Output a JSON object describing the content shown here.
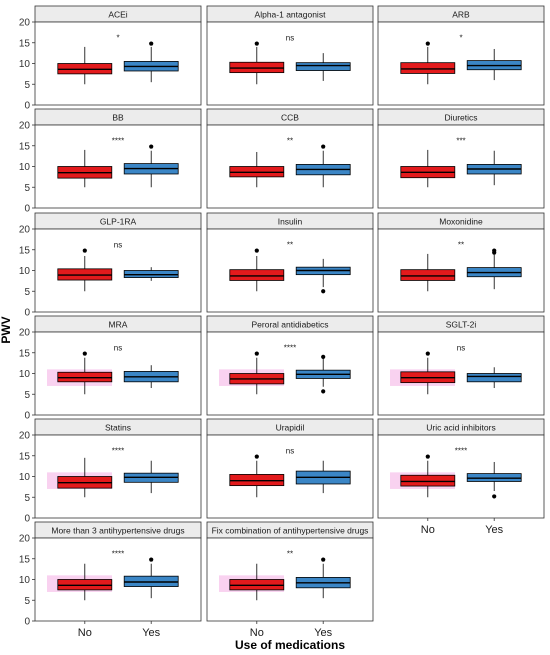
{
  "chart_data": {
    "type": "box",
    "xlabel": "Use of medications",
    "ylabel": "PWV",
    "categories": [
      "No",
      "Yes"
    ],
    "ylim": [
      0,
      20
    ],
    "yticks": [
      0,
      5,
      10,
      15,
      20
    ],
    "colors": {
      "No": "#e31a1c",
      "Yes": "#3b86c6",
      "highlight": "#f9d2f0",
      "strip": "#ececec",
      "border": "#333333"
    },
    "grid": false,
    "facets": [
      {
        "title": "ACEi",
        "significance": "*",
        "highlight": false,
        "No": {
          "min": 5.0,
          "q1": 7.5,
          "median": 8.6,
          "q3": 10.0,
          "max": 14.0,
          "outliers": []
        },
        "Yes": {
          "min": 5.5,
          "q1": 8.2,
          "median": 9.3,
          "q3": 10.5,
          "max": 14.0,
          "outliers": [
            14.8
          ]
        }
      },
      {
        "title": "Alpha-1 antagonist",
        "significance": "ns",
        "highlight": false,
        "No": {
          "min": 5.0,
          "q1": 7.8,
          "median": 8.9,
          "q3": 10.3,
          "max": 14.0,
          "outliers": [
            14.8
          ]
        },
        "Yes": {
          "min": 5.8,
          "q1": 8.3,
          "median": 9.5,
          "q3": 10.2,
          "max": 12.5,
          "outliers": []
        }
      },
      {
        "title": "ARB",
        "significance": "*",
        "highlight": false,
        "No": {
          "min": 5.0,
          "q1": 7.6,
          "median": 8.7,
          "q3": 10.2,
          "max": 14.0,
          "outliers": [
            14.8
          ]
        },
        "Yes": {
          "min": 6.0,
          "q1": 8.5,
          "median": 9.5,
          "q3": 10.7,
          "max": 13.5,
          "outliers": []
        }
      },
      {
        "title": "BB",
        "significance": "****",
        "highlight": false,
        "No": {
          "min": 5.0,
          "q1": 7.2,
          "median": 8.5,
          "q3": 10.0,
          "max": 14.0,
          "outliers": []
        },
        "Yes": {
          "min": 5.0,
          "q1": 8.2,
          "median": 9.5,
          "q3": 10.7,
          "max": 13.8,
          "outliers": [
            14.8
          ]
        }
      },
      {
        "title": "CCB",
        "significance": "**",
        "highlight": false,
        "No": {
          "min": 5.0,
          "q1": 7.5,
          "median": 8.6,
          "q3": 10.0,
          "max": 13.5,
          "outliers": []
        },
        "Yes": {
          "min": 5.0,
          "q1": 8.0,
          "median": 9.3,
          "q3": 10.5,
          "max": 13.8,
          "outliers": [
            14.8
          ]
        }
      },
      {
        "title": "Diuretics",
        "significance": "***",
        "highlight": false,
        "No": {
          "min": 5.0,
          "q1": 7.3,
          "median": 8.6,
          "q3": 10.0,
          "max": 14.0,
          "outliers": []
        },
        "Yes": {
          "min": 5.5,
          "q1": 8.2,
          "median": 9.4,
          "q3": 10.5,
          "max": 13.8,
          "outliers": []
        }
      },
      {
        "title": "GLP-1RA",
        "significance": "ns",
        "highlight": false,
        "No": {
          "min": 5.0,
          "q1": 7.7,
          "median": 8.9,
          "q3": 10.4,
          "max": 13.5,
          "outliers": [
            14.8
          ]
        },
        "Yes": {
          "min": 7.5,
          "q1": 8.3,
          "median": 9.0,
          "q3": 10.0,
          "max": 10.8,
          "outliers": []
        }
      },
      {
        "title": "Insulin",
        "significance": "**",
        "highlight": false,
        "No": {
          "min": 5.0,
          "q1": 7.6,
          "median": 8.7,
          "q3": 10.2,
          "max": 13.5,
          "outliers": [
            14.8
          ]
        },
        "Yes": {
          "min": 6.0,
          "q1": 9.0,
          "median": 10.0,
          "q3": 10.8,
          "max": 12.8,
          "outliers": [
            5.0
          ]
        }
      },
      {
        "title": "Moxonidine",
        "significance": "**",
        "highlight": false,
        "No": {
          "min": 5.0,
          "q1": 7.6,
          "median": 8.7,
          "q3": 10.2,
          "max": 14.0,
          "outliers": []
        },
        "Yes": {
          "min": 5.5,
          "q1": 8.5,
          "median": 9.5,
          "q3": 10.7,
          "max": 13.8,
          "outliers": [
            14.3,
            14.8
          ]
        }
      },
      {
        "title": "MRA",
        "significance": "ns",
        "highlight": true,
        "No": {
          "min": 5.0,
          "q1": 8.0,
          "median": 9.0,
          "q3": 10.3,
          "max": 13.8,
          "outliers": [
            14.8
          ]
        },
        "Yes": {
          "min": 6.5,
          "q1": 8.0,
          "median": 9.2,
          "q3": 10.5,
          "max": 12.0,
          "outliers": []
        }
      },
      {
        "title": "Peroral antidiabetics",
        "significance": "****",
        "highlight": true,
        "No": {
          "min": 5.0,
          "q1": 7.5,
          "median": 8.7,
          "q3": 10.0,
          "max": 13.8,
          "outliers": [
            14.8
          ]
        },
        "Yes": {
          "min": 6.8,
          "q1": 8.8,
          "median": 9.8,
          "q3": 10.8,
          "max": 13.5,
          "outliers": [
            14.0,
            5.7
          ]
        }
      },
      {
        "title": "SGLT-2i",
        "significance": "ns",
        "highlight": true,
        "No": {
          "min": 5.0,
          "q1": 7.8,
          "median": 9.0,
          "q3": 10.4,
          "max": 13.8,
          "outliers": [
            14.8
          ]
        },
        "Yes": {
          "min": 6.5,
          "q1": 8.0,
          "median": 9.3,
          "q3": 10.0,
          "max": 11.5,
          "outliers": []
        }
      },
      {
        "title": "Statins",
        "significance": "****",
        "highlight": true,
        "No": {
          "min": 5.0,
          "q1": 7.2,
          "median": 8.5,
          "q3": 10.0,
          "max": 14.5,
          "outliers": []
        },
        "Yes": {
          "min": 6.0,
          "q1": 8.6,
          "median": 9.8,
          "q3": 10.8,
          "max": 13.8,
          "outliers": []
        }
      },
      {
        "title": "Urapidil",
        "significance": "ns",
        "highlight": false,
        "No": {
          "min": 5.0,
          "q1": 7.8,
          "median": 9.0,
          "q3": 10.5,
          "max": 13.8,
          "outliers": [
            14.8
          ]
        },
        "Yes": {
          "min": 6.0,
          "q1": 8.2,
          "median": 9.8,
          "q3": 11.3,
          "max": 13.8,
          "outliers": []
        }
      },
      {
        "title": "Uric acid inhibitors",
        "significance": "****",
        "highlight": true,
        "No": {
          "min": 5.0,
          "q1": 7.7,
          "median": 8.8,
          "q3": 10.3,
          "max": 13.8,
          "outliers": [
            14.8
          ]
        },
        "Yes": {
          "min": 6.5,
          "q1": 8.8,
          "median": 9.6,
          "q3": 10.7,
          "max": 13.5,
          "outliers": [
            5.2
          ]
        }
      },
      {
        "title": "More than 3 antihypertensive drugs",
        "significance": "****",
        "highlight": true,
        "No": {
          "min": 5.0,
          "q1": 7.5,
          "median": 8.6,
          "q3": 10.0,
          "max": 13.8,
          "outliers": []
        },
        "Yes": {
          "min": 5.5,
          "q1": 8.3,
          "median": 9.4,
          "q3": 10.8,
          "max": 13.8,
          "outliers": [
            14.8
          ]
        }
      },
      {
        "title": "Fix combination of antihypertensive drugs",
        "significance": "**",
        "highlight": true,
        "No": {
          "min": 5.0,
          "q1": 7.5,
          "median": 8.6,
          "q3": 10.0,
          "max": 13.8,
          "outliers": []
        },
        "Yes": {
          "min": 5.5,
          "q1": 8.0,
          "median": 9.2,
          "q3": 10.5,
          "max": 13.8,
          "outliers": [
            14.8
          ]
        }
      }
    ]
  }
}
